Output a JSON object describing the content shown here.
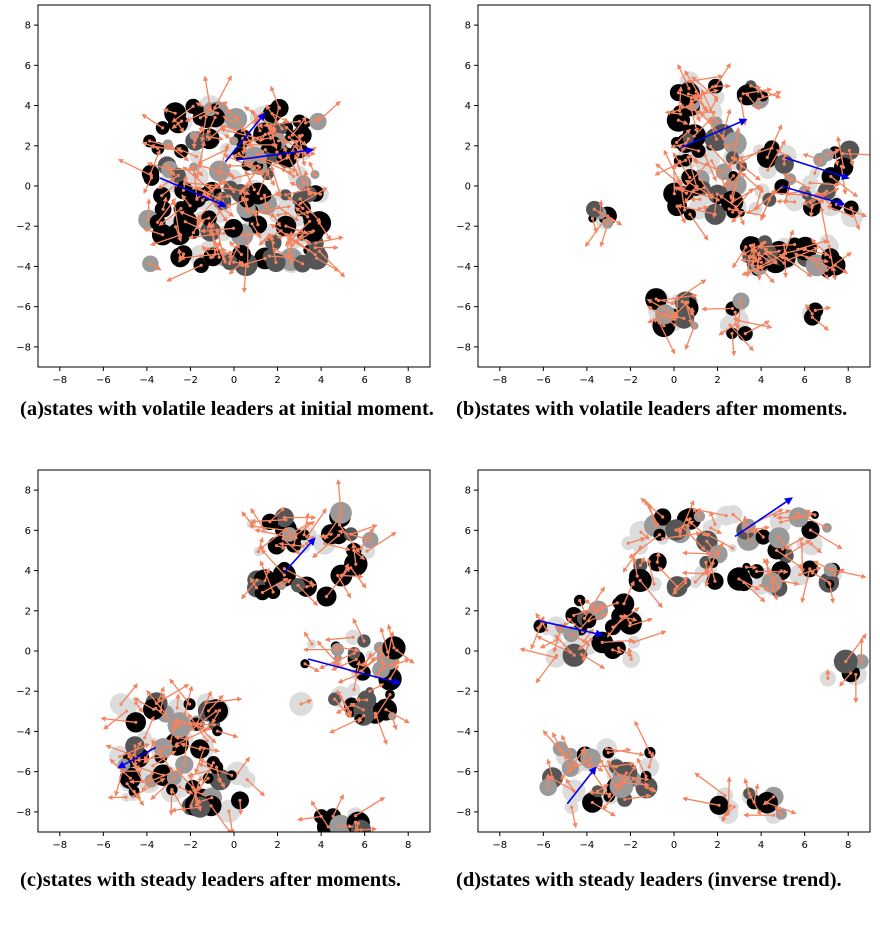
{
  "colors": {
    "follower_vector": "#f4845f",
    "leader_vector": "#0000ee",
    "agent_black": "#000000",
    "agent_dark_gray": "#555555",
    "agent_mid_gray": "#9a9a9a",
    "agent_light_gray": "#dcdcdc"
  },
  "chart_data": [
    {
      "type": "scatter",
      "caption": "(a)states with volatile leaders at initial moment.",
      "xlim": [
        -9,
        9
      ],
      "ylim": [
        -9,
        9
      ],
      "xticks": [
        -8,
        -6,
        -4,
        -2,
        0,
        2,
        4,
        6,
        8
      ],
      "yticks": [
        8,
        6,
        4,
        2,
        0,
        -2,
        -4,
        -6,
        -8
      ],
      "clusters": [
        {
          "x": [
            -4,
            4
          ],
          "y": [
            -4,
            4
          ],
          "n": 190
        }
      ],
      "leaders": [
        {
          "x0": -3.4,
          "y0": 0.4,
          "x1": -0.4,
          "y1": -1.0
        },
        {
          "x0": -0.4,
          "y0": 1.2,
          "x1": 1.4,
          "y1": 3.6
        },
        {
          "x0": 0.1,
          "y0": 1.3,
          "x1": 3.6,
          "y1": 1.8
        }
      ]
    },
    {
      "type": "scatter",
      "caption": "(b)states with volatile leaders after moments.",
      "xlim": [
        -9,
        9
      ],
      "ylim": [
        -9,
        9
      ],
      "xticks": [
        -8,
        -6,
        -4,
        -2,
        0,
        2,
        4,
        6,
        8
      ],
      "yticks": [
        8,
        6,
        4,
        2,
        0,
        -2,
        -4,
        -6,
        -8
      ],
      "clusters": [
        {
          "x": [
            0,
            2
          ],
          "y": [
            3,
            5.2
          ],
          "n": 22
        },
        {
          "x": [
            3,
            4.3
          ],
          "y": [
            4.3,
            5
          ],
          "n": 6
        },
        {
          "x": [
            -0.2,
            3
          ],
          "y": [
            -1.5,
            2.5
          ],
          "n": 40
        },
        {
          "x": [
            2.5,
            8.2
          ],
          "y": [
            -1.5,
            2
          ],
          "n": 45
        },
        {
          "x": [
            3.2,
            7.5
          ],
          "y": [
            -4.3,
            -2.7
          ],
          "n": 35
        },
        {
          "x": [
            -3.8,
            -3
          ],
          "y": [
            -2,
            -1.1
          ],
          "n": 6
        },
        {
          "x": [
            -1.4,
            1
          ],
          "y": [
            -7,
            -5.6
          ],
          "n": 16
        },
        {
          "x": [
            2.5,
            3.3
          ],
          "y": [
            -7.7,
            -5.5
          ],
          "n": 8
        },
        {
          "x": [
            6,
            6.5
          ],
          "y": [
            -6.6,
            -6.1
          ],
          "n": 3
        }
      ],
      "leaders": [
        {
          "x0": 0.3,
          "y0": 1.9,
          "x1": 3.3,
          "y1": 3.3
        },
        {
          "x0": 5.1,
          "y0": 1.4,
          "x1": 8.0,
          "y1": 0.4
        },
        {
          "x0": 4.9,
          "y0": 0.0,
          "x1": 7.8,
          "y1": -0.9
        }
      ]
    },
    {
      "type": "scatter",
      "caption": "(c)states with steady leaders after moments.",
      "xlim": [
        -9,
        9
      ],
      "ylim": [
        -9,
        9
      ],
      "xticks": [
        -8,
        -6,
        -4,
        -2,
        0,
        2,
        4,
        6,
        8
      ],
      "yticks": [
        8,
        6,
        4,
        2,
        0,
        -2,
        -4,
        -6,
        -8
      ],
      "clusters": [
        {
          "x": [
            0.5,
            6.3
          ],
          "y": [
            2.7,
            7
          ],
          "n": 45
        },
        {
          "x": [
            3,
            7.5
          ],
          "y": [
            -3.5,
            0.7
          ],
          "n": 40
        },
        {
          "x": [
            -5.3,
            -0.5
          ],
          "y": [
            -7.8,
            -2.3
          ],
          "n": 70
        },
        {
          "x": [
            -1.6,
            1.3
          ],
          "y": [
            -8,
            -4.3
          ],
          "n": 8
        },
        {
          "x": [
            4,
            6
          ],
          "y": [
            -9,
            -8
          ],
          "n": 8
        }
      ],
      "leaders": [
        {
          "x0": 2.3,
          "y0": 3.9,
          "x1": 3.7,
          "y1": 5.6
        },
        {
          "x0": 3.4,
          "y0": -0.4,
          "x1": 7.6,
          "y1": -1.6
        },
        {
          "x0": -3.6,
          "y0": -4.8,
          "x1": -5.3,
          "y1": -5.8
        }
      ]
    },
    {
      "type": "scatter",
      "caption": "(d)states with steady leaders (inverse trend).",
      "xlim": [
        -9,
        9
      ],
      "ylim": [
        -9,
        9
      ],
      "xticks": [
        -8,
        -6,
        -4,
        -2,
        0,
        2,
        4,
        6,
        8
      ],
      "yticks": [
        8,
        6,
        4,
        2,
        0,
        -2,
        -4,
        -6,
        -8
      ],
      "clusters": [
        {
          "x": [
            -2.3,
            7.6
          ],
          "y": [
            3,
            6.8
          ],
          "n": 70
        },
        {
          "x": [
            -6.5,
            -1.3
          ],
          "y": [
            -0.5,
            2.6
          ],
          "n": 35
        },
        {
          "x": [
            -6,
            -0.7
          ],
          "y": [
            -7.8,
            -4.8
          ],
          "n": 35
        },
        {
          "x": [
            2,
            5
          ],
          "y": [
            -8.2,
            -6.8
          ],
          "n": 12
        },
        {
          "x": [
            7,
            8.6
          ],
          "y": [
            -1.6,
            -0.5
          ],
          "n": 5
        }
      ],
      "leaders": [
        {
          "x0": 2.8,
          "y0": 5.7,
          "x1": 5.4,
          "y1": 7.6
        },
        {
          "x0": -6.2,
          "y0": 1.5,
          "x1": -3.3,
          "y1": 0.8
        },
        {
          "x0": -4.9,
          "y0": -7.6,
          "x1": -3.6,
          "y1": -5.8
        }
      ]
    }
  ]
}
